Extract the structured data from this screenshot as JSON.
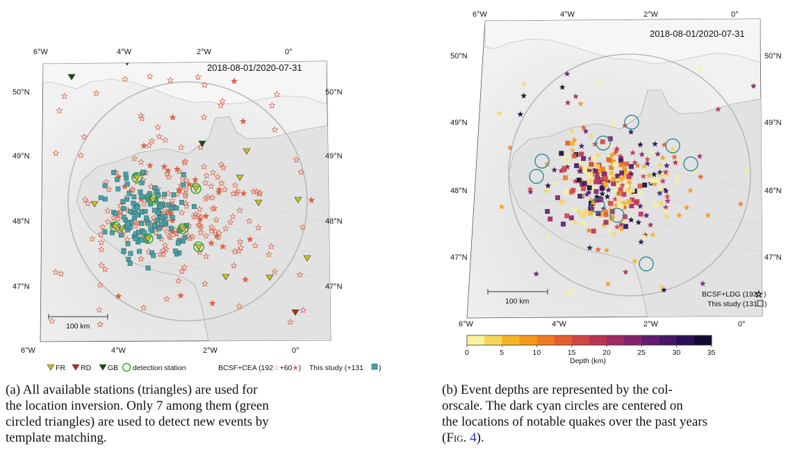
{
  "panel_a": {
    "date_range": "2018-08-01/2020-07-31",
    "lon_ticks_top": [
      "6°W",
      "4°W",
      "2°W",
      "0°"
    ],
    "lon_ticks_bottom": [
      "6°W",
      "4°W",
      "2°W",
      "0°"
    ],
    "lat_ticks_left": [
      "50°N",
      "49°N",
      "48°N",
      "47°N"
    ],
    "lat_ticks_right": [
      "50°N",
      "49°N",
      "48°N",
      "47°N"
    ],
    "scale_bar": "100 km",
    "legend": {
      "fr": "FR",
      "rd": "RD",
      "gb": "GB",
      "detection": "detection station",
      "bcsf_prefix": "BCSF+CEA (192",
      "bcsf_middle": "+60",
      "bcsf_suffix": ")",
      "study_prefix": "This study (+131",
      "study_suffix": ")"
    },
    "caption_lines": [
      "(a) All available stations (triangles) are used for",
      "the location inversion. Only 7 among them (green",
      "circled triangles) are used to detect new events by",
      "template matching."
    ]
  },
  "panel_b": {
    "date_range": "2018-08-01/2020-07-31",
    "lon_ticks_top": [
      "6°W",
      "4°W",
      "2°W",
      "0°"
    ],
    "lon_ticks_bottom": [
      "6°W",
      "4°W",
      "2°W",
      "0°"
    ],
    "lat_ticks_left": [
      "50°N",
      "49°N",
      "48°N",
      "47°N"
    ],
    "lat_ticks_right": [
      "50°N",
      "49°N",
      "48°N",
      "47°N"
    ],
    "scale_bar": "100 km",
    "legend": {
      "bcsf": "BCSF+LDG (192",
      "bcsf_suffix": ")",
      "study": "This study (131",
      "study_suffix": ")"
    },
    "colorbar": {
      "label": "Depth (km)",
      "ticks": [
        "0",
        "5",
        "10",
        "15",
        "20",
        "25",
        "30",
        "35"
      ],
      "colors": [
        "#f7f39a",
        "#f7d65a",
        "#f5b524",
        "#f39a1a",
        "#ee7b22",
        "#e45c30",
        "#d04645",
        "#b93554",
        "#9d2a61",
        "#80236b",
        "#621d6e",
        "#451766",
        "#2a1052",
        "#150a30"
      ]
    },
    "caption_lines": [
      "(b) Event depths are represented by the col-",
      "orscale. The dark cyan circles are centered on",
      "the locations of notable quakes over the past years"
    ],
    "caption_last_prefix": "(",
    "caption_last_fig": "Fig.",
    "caption_last_ref": "4",
    "caption_last_suffix": ")."
  },
  "colors": {
    "fr_station": "#c9c21a",
    "rd_station": "#c0260f",
    "gb_station": "#1e4a1e",
    "detection_ring": "#22b022",
    "bcsf_star": "#d9664a",
    "study_square": "#4aa0a6",
    "cyan_circle": "#2c8c95",
    "radius_circle": "#b8b8b8"
  }
}
